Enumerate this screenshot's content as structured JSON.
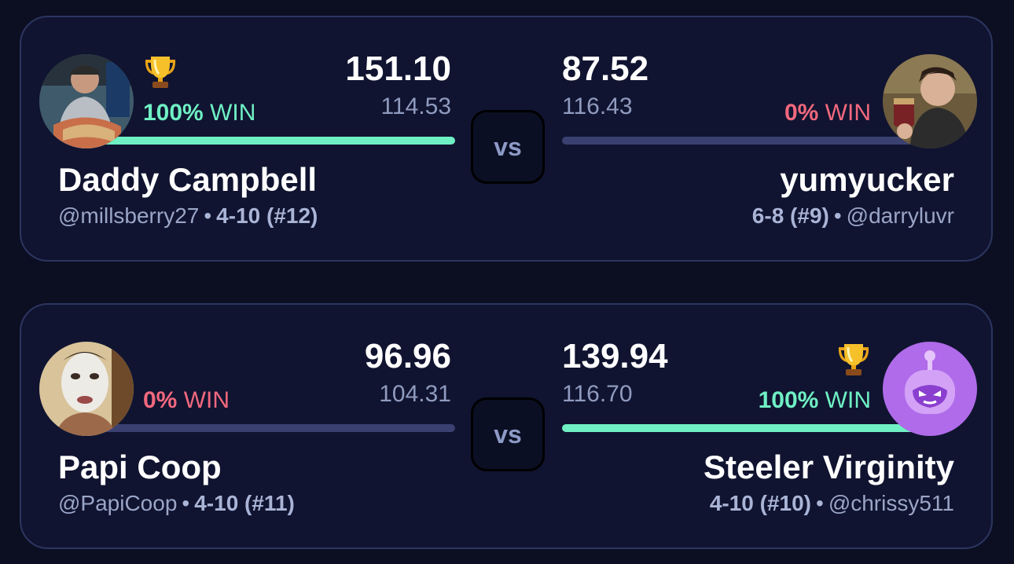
{
  "colors": {
    "background": "#0c0f22",
    "card": "#101430",
    "card_border": "#2c3560",
    "win": "#6ff0c4",
    "lose": "#f2687e",
    "bar_track": "#3a4170",
    "muted_text": "#8f9bbf"
  },
  "matchups": [
    {
      "vs_label": "vs",
      "left": {
        "team_name": "Daddy Campbell",
        "handle": "@millsberry27",
        "record": "4-10 (#12)",
        "score": "151.10",
        "projected": "114.53",
        "win_pct": "100%",
        "win_label": "WIN",
        "win_probability": 1.0,
        "trophy_icon": "trophy-icon",
        "avatar": "avatar-photo"
      },
      "right": {
        "team_name": "yumyucker",
        "handle": "@darryluvr",
        "record": "6-8 (#9)",
        "score": "87.52",
        "projected": "116.43",
        "win_pct": "0%",
        "win_label": "WIN",
        "win_probability": 0.0,
        "avatar": "avatar-photo"
      }
    },
    {
      "vs_label": "vs",
      "left": {
        "team_name": "Papi Coop",
        "handle": "@PapiCoop",
        "record": "4-10 (#11)",
        "score": "96.96",
        "projected": "104.31",
        "win_pct": "0%",
        "win_label": "WIN",
        "win_probability": 0.0,
        "avatar": "avatar-photo"
      },
      "right": {
        "team_name": "Steeler Virginity",
        "handle": "@chrissy511",
        "record": "4-10 (#10)",
        "score": "139.94",
        "projected": "116.70",
        "win_pct": "100%",
        "win_label": "WIN",
        "win_probability": 1.0,
        "trophy_icon": "trophy-icon",
        "avatar": "robot-avatar-icon"
      }
    }
  ]
}
